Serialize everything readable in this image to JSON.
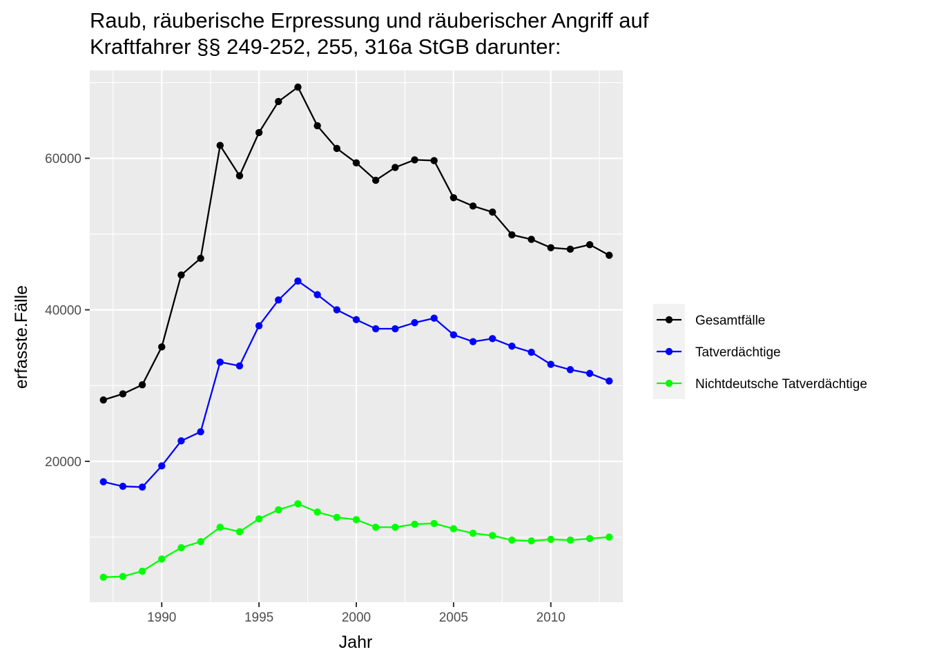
{
  "chart_data": {
    "type": "line",
    "title": "Raub, räuberische Erpressung und räuberischer Angriff auf\nKraftfahrer §§ 249-252, 255, 316a StGB darunter:",
    "xlabel": "Jahr",
    "ylabel": "erfasste.Fälle",
    "xlim": [
      1986.3,
      2013.7
    ],
    "ylim": [
      1400,
      71600
    ],
    "x_ticks": [
      1990,
      1995,
      2000,
      2005,
      2010
    ],
    "x_tick_labels": [
      "1990",
      "1995",
      "2000",
      "2005",
      "2010"
    ],
    "y_ticks": [
      20000,
      40000,
      60000
    ],
    "y_tick_labels": [
      "20000",
      "40000",
      "60000"
    ],
    "grid": true,
    "legend_position": "right",
    "x": [
      1987,
      1988,
      1989,
      1990,
      1991,
      1992,
      1993,
      1994,
      1995,
      1996,
      1997,
      1998,
      1999,
      2000,
      2001,
      2002,
      2003,
      2004,
      2005,
      2006,
      2007,
      2008,
      2009,
      2010,
      2011,
      2012,
      2013
    ],
    "series": [
      {
        "name": "Gesamtfälle",
        "color": "#000000",
        "values": [
          28100,
          28900,
          30100,
          35100,
          44600,
          46800,
          61700,
          57700,
          63400,
          67500,
          69400,
          64300,
          61300,
          59400,
          57100,
          58800,
          59800,
          59700,
          54800,
          53700,
          52900,
          49900,
          49300,
          48200,
          48000,
          48600,
          47200
        ]
      },
      {
        "name": "Tatverdächtige",
        "color": "#0000ff",
        "values": [
          17300,
          16700,
          16600,
          19400,
          22700,
          23900,
          33100,
          32600,
          37900,
          41300,
          43800,
          42000,
          40000,
          38700,
          37500,
          37500,
          38300,
          38900,
          36700,
          35800,
          36200,
          35200,
          34400,
          32800,
          32100,
          31600,
          30600
        ]
      },
      {
        "name": "Nichtdeutsche Tatverdächtige",
        "color": "#00ff00",
        "values": [
          4700,
          4800,
          5500,
          7100,
          8600,
          9400,
          11300,
          10700,
          12400,
          13600,
          14400,
          13300,
          12600,
          12300,
          11300,
          11300,
          11700,
          11800,
          11100,
          10500,
          10200,
          9600,
          9500,
          9700,
          9600,
          9800,
          10000
        ]
      }
    ]
  }
}
